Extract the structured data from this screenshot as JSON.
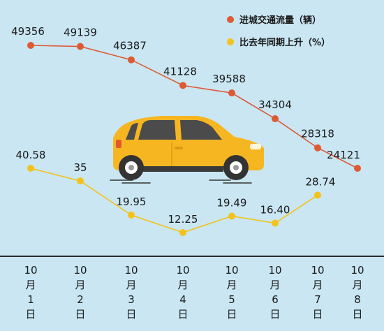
{
  "chart_data": {
    "type": "line",
    "categories": [
      "10月1日",
      "10月2日",
      "10月3日",
      "10月4日",
      "10月5日",
      "10月6日",
      "10月7日",
      "10月8日"
    ],
    "x_tick_parts": [
      [
        "10",
        "月",
        "1",
        "日"
      ],
      [
        "10",
        "月",
        "2",
        "日"
      ],
      [
        "10",
        "月",
        "3",
        "日"
      ],
      [
        "10",
        "月",
        "4",
        "日"
      ],
      [
        "10",
        "月",
        "5",
        "日"
      ],
      [
        "10",
        "月",
        "6",
        "日"
      ],
      [
        "10",
        "月",
        "7",
        "日"
      ],
      [
        "10",
        "月",
        "8",
        "日"
      ]
    ],
    "series": [
      {
        "name": "进城交通流量（辆）",
        "color": "#dd5a34",
        "values": [
          49356,
          49139,
          46387,
          41128,
          39588,
          34304,
          28318,
          24121
        ],
        "labels": [
          "49356",
          "49139",
          "46387",
          "41128",
          "39588",
          "34304",
          "28318",
          "24121"
        ]
      },
      {
        "name": "比去年同期上升（%）",
        "color": "#f3c21d",
        "values": [
          40.58,
          35,
          19.95,
          12.25,
          19.49,
          16.4,
          28.74,
          null
        ],
        "labels": [
          "40.58",
          "35",
          "19.95",
          "12.25",
          "19.49",
          "16.40",
          "28.74",
          ""
        ]
      }
    ],
    "legend_position": "top-right",
    "grid": false,
    "background": "#c9e6f2",
    "axis_color": "#2a2a2a"
  }
}
